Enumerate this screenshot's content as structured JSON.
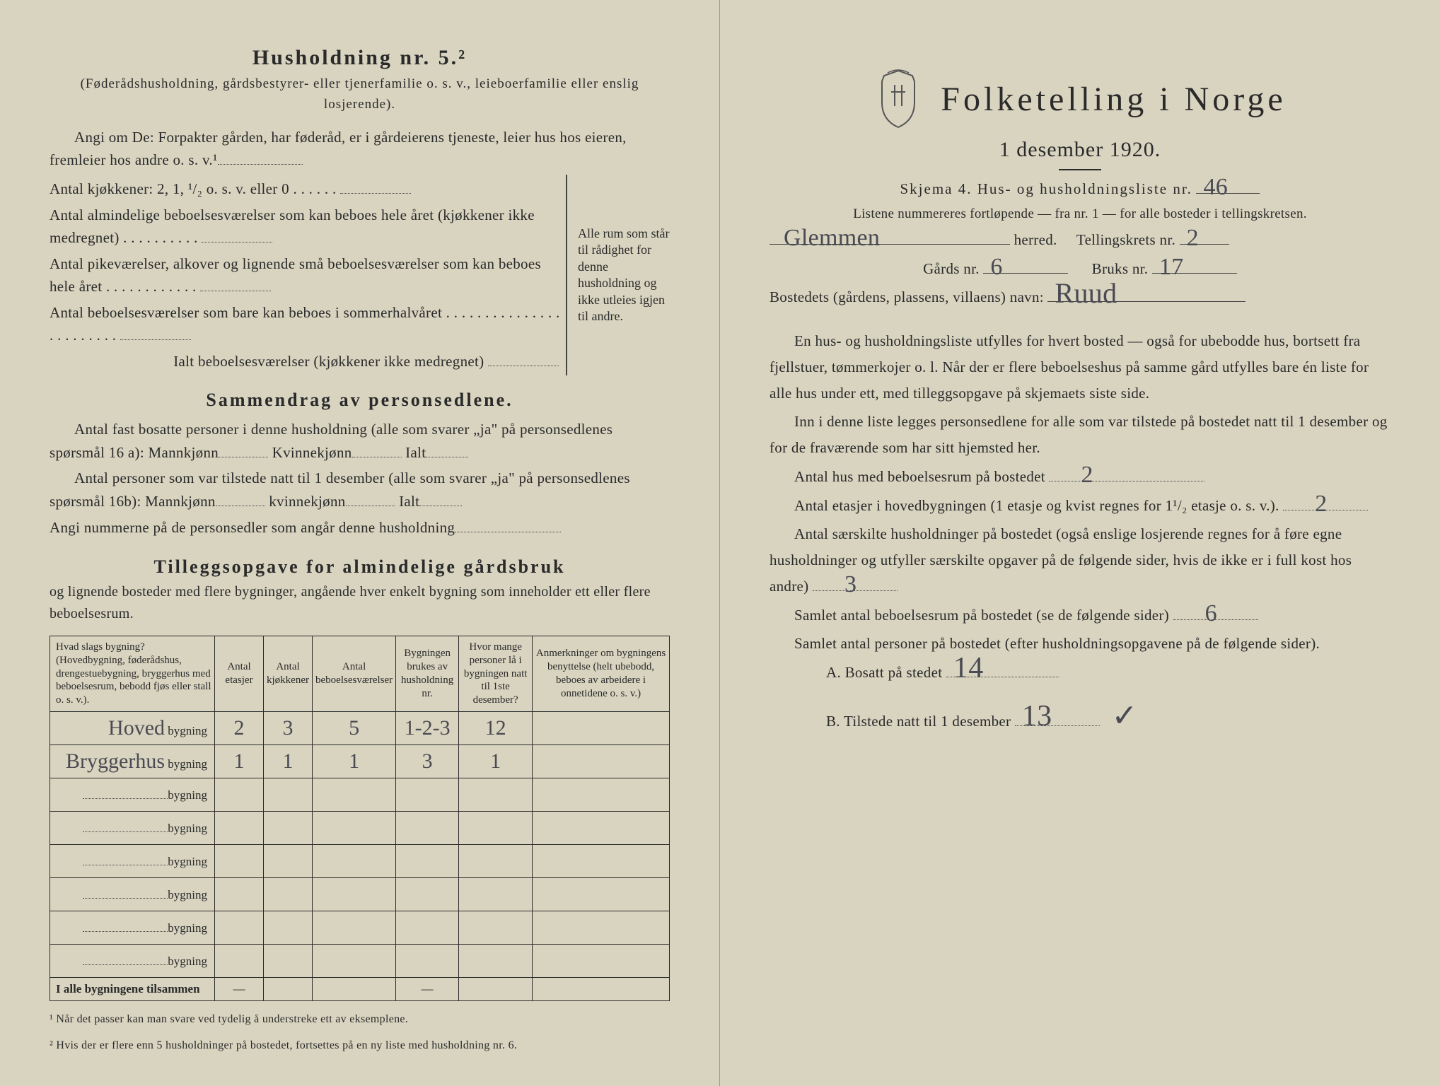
{
  "left": {
    "heading": "Husholdning nr. 5.²",
    "sub1": "(Føderådshusholdning, gårdsbestyrer- eller tjenerfamilie o. s. v., leieboerfamilie eller enslig losjerende).",
    "para1": "Angi om De: Forpakter gården, har føderåd, er i gårdeierens tjeneste, leier hus hos eieren, fremleier hos andre o. s. v.¹",
    "kitchen_line": "Antal kjøkkener: 2, 1, ¹/₂ o. s. v. eller 0",
    "room_lines": [
      "Antal almindelige beboelsesværelser som kan beboes hele året (kjøkkener ikke medregnet)",
      "Antal pikeværelser, alkover og lignende små beboelsesværelser som kan beboes hele året",
      "Antal beboelsesværelser som bare kan beboes i sommerhalvåret"
    ],
    "room_total": "Ialt beboelsesværelser (kjøkkener ikke medregnet)",
    "bracket_note": "Alle rum som står til rådighet for denne husholdning og ikke utleies igjen til andre.",
    "sammendrag_title": "Sammendrag av personsedlene.",
    "sd_line1a": "Antal fast bosatte personer i denne husholdning (alle som svarer „ja\" på personsedlenes spørsmål 16 a): Mannkjønn",
    "sd_kv": "Kvinnekjønn",
    "sd_ialt": "Ialt",
    "sd_line2a": "Antal personer som var tilstede natt til 1 desember (alle som svarer „ja\" på personsedlenes spørsmål 16b): Mannkjønn",
    "sd_kv2": "kvinnekjønn",
    "sd_line3": "Angi nummerne på de personsedler som angår denne husholdning",
    "tillegg_title": "Tilleggsopgave for almindelige gårdsbruk",
    "tillegg_sub": "og lignende bosteder med flere bygninger, angående hver enkelt bygning som inneholder ett eller flere beboelsesrum.",
    "table": {
      "headers": [
        "Hvad slags bygning?\n(Hovedbygning, føderådshus, drengestuebygning, bryggerhus med beboelsesrum, bebodd fjøs eller stall o. s. v.).",
        "Antal etasjer",
        "Antal kjøkkener",
        "Antal beboelsesværelser",
        "Bygningen brukes av husholdning nr.",
        "Hvor mange personer lå i bygningen natt til 1ste desember?",
        "Anmerkninger om bygningens benyttelse (helt ubebodd, beboes av arbeidere i onnetidene o. s. v.)"
      ],
      "row_label": "bygning",
      "hand_labels": [
        "Hoved",
        "Bryggerhus"
      ],
      "rows": [
        [
          "2",
          "3",
          "5",
          "1-2-3",
          "12",
          ""
        ],
        [
          "1",
          "1",
          "1",
          "3",
          "1",
          ""
        ],
        [
          "",
          "",
          "",
          "",
          "",
          ""
        ],
        [
          "",
          "",
          "",
          "",
          "",
          ""
        ],
        [
          "",
          "",
          "",
          "",
          "",
          ""
        ],
        [
          "",
          "",
          "",
          "",
          "",
          ""
        ],
        [
          "",
          "",
          "",
          "",
          "",
          ""
        ],
        [
          "",
          "",
          "",
          "",
          "",
          ""
        ]
      ],
      "footer_label": "I alle bygningene tilsammen",
      "footer_cells": [
        "—",
        "",
        "",
        "—",
        "",
        ""
      ]
    },
    "foot1": "¹ Når det passer kan man svare ved tydelig å understreke ett av eksemplene.",
    "foot2": "² Hvis der er flere enn 5 husholdninger på bostedet, fortsettes på en ny liste med husholdning nr. 6."
  },
  "right": {
    "title": "Folketelling i Norge",
    "date": "1 desember 1920.",
    "skjema": "Skjema 4.  Hus- og husholdningsliste nr.",
    "skjema_val": "46",
    "listene": "Listene nummereres fortløpende — fra nr. 1 — for alle bosteder i tellingskretsen.",
    "herred_val": "Glemmen",
    "herred_label": "herred.",
    "krets_label": "Tellingskrets nr.",
    "krets_val": "2",
    "gards_label": "Gårds nr.",
    "gards_val": "6",
    "bruks_label": "Bruks nr.",
    "bruks_val": "17",
    "bosted_label": "Bostedets (gårdens, plassens, villaens) navn:",
    "bosted_val": "Ruud",
    "para1": "En hus- og husholdningsliste utfylles for hvert bosted — også for ubebodde hus, bortsett fra fjellstuer, tømmerkojer o. l. Når der er flere beboelseshus på samme gård utfylles bare én liste for alle hus under ett, med tilleggsopgave på skjemaets siste side.",
    "para2": "Inn i denne liste legges personsedlene for alle som var tilstede på bostedet natt til 1 desember og for de fraværende som har sitt hjemsted her.",
    "q1": "Antal hus med beboelsesrum på bostedet",
    "q1_val": "2",
    "q2a": "Antal etasjer i hovedbygningen (1 etasje og kvist regnes for 1¹/₂ etasje o. s. v.).",
    "q2_val": "2",
    "q3": "Antal særskilte husholdninger på bostedet (også enslige losjerende regnes for å føre egne husholdninger og utfyller særskilte opgaver på de følgende sider, hvis de ikke er i full kost hos andre)",
    "q3_val": "3",
    "q4": "Samlet antal beboelsesrum på bostedet (se de følgende sider)",
    "q4_val": "6",
    "q5": "Samlet antal personer på bostedet (efter husholdningsopgavene på de følgende sider).",
    "qA": "A.  Bosatt på stedet",
    "qA_val": "14",
    "qB": "B.  Tilstede natt til 1 desember",
    "qB_val": "13",
    "check": "✓"
  }
}
